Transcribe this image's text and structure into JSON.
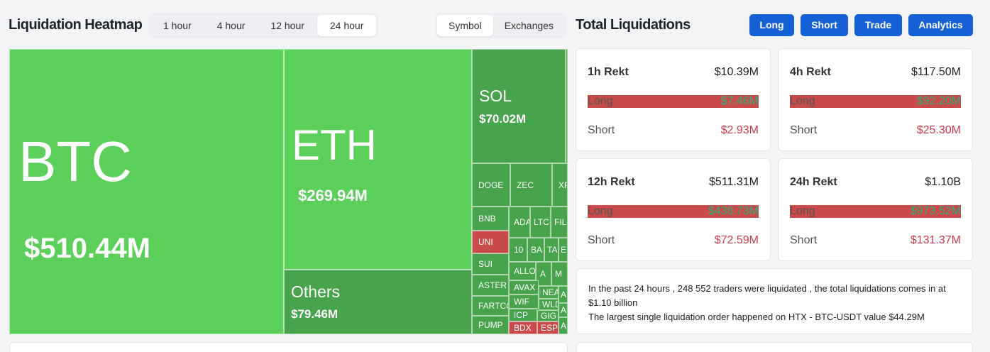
{
  "heatmap": {
    "title": "Liquidation Heatmap",
    "time_tabs": [
      "1 hour",
      "4 hour",
      "12 hour",
      "24 hour"
    ],
    "active_time": "24 hour",
    "view_tabs": [
      "Symbol",
      "Exchanges"
    ],
    "active_view": "Symbol",
    "tiles": {
      "btc": {
        "symbol": "BTC",
        "value": "$510.44M"
      },
      "eth": {
        "symbol": "ETH",
        "value": "$269.94M"
      },
      "others": {
        "symbol": "Others",
        "value": "$79.46M"
      },
      "sol": {
        "symbol": "SOL",
        "value": "$70.02M"
      },
      "doge": "DOGE",
      "zec": "ZEC",
      "xrp": "XR",
      "bnb": "BNB",
      "ada": "ADA",
      "ltc": "LTC",
      "fil": "FIL",
      "uni": "UNI",
      "sui": "SUI",
      "aster": "ASTER",
      "fartcoin": "FARTCO",
      "pump": "PUMP",
      "t10": "10",
      "ba": "BA",
      "ta": "TA",
      "e": "E",
      "allo": "ALLO",
      "a1": "A",
      "m": "M",
      "avax": "AVAX",
      "near": "NEA",
      "wif": "WIF",
      "wld": "WLD",
      "icp": "ICP",
      "gig": "GIG",
      "bdx": "BDX",
      "esp": "ESP",
      "a2": "A",
      "a3": "A",
      "a4": "A"
    }
  },
  "totals": {
    "title": "Total Liquidations",
    "buttons": [
      "Long",
      "Short",
      "Trade",
      "Analytics"
    ],
    "cards": [
      {
        "label": "1h Rekt",
        "total": "$10.39M",
        "long_label": "Long",
        "long": "$7.46M",
        "short_label": "Short",
        "short": "$2.93M"
      },
      {
        "label": "4h Rekt",
        "total": "$117.50M",
        "long_label": "Long",
        "long": "$92.20M",
        "short_label": "Short",
        "short": "$25.30M"
      },
      {
        "label": "12h Rekt",
        "total": "$511.31M",
        "long_label": "Long",
        "long": "$438.73M",
        "short_label": "Short",
        "short": "$72.59M"
      },
      {
        "label": "24h Rekt",
        "total": "$1.10B",
        "long_label": "Long",
        "long": "$973.52M",
        "short_label": "Short",
        "short": "$131.37M"
      }
    ],
    "info_line1": "In the past 24 hours , 248 552 traders were liquidated , the total liquidations comes in at $1.10 billion",
    "info_line2": "The largest single liquidation order happened on HTX - BTC-USDT value $44.29M"
  },
  "colors": {
    "accent": "#1560d4",
    "long": "#2fae7c",
    "short": "#d23b4e",
    "tile_green": "#5ccf5a",
    "tile_red": "#c94a4a"
  }
}
